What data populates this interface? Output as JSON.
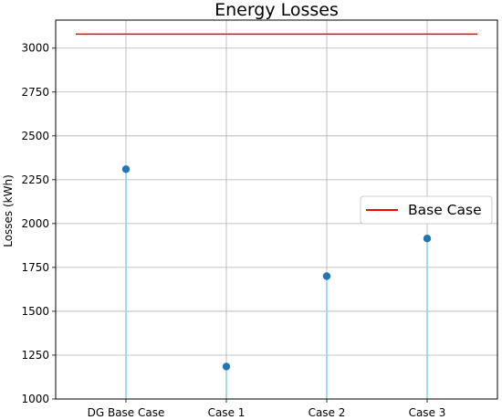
{
  "chart_data": {
    "type": "stem",
    "title": "Energy Losses",
    "xlabel": "",
    "ylabel": "Losses (kWh)",
    "categories": [
      "DG Base Case",
      "Case 1",
      "Case 2",
      "Case 3"
    ],
    "values": [
      2310,
      1185,
      1700,
      1915
    ],
    "ylim": [
      1000,
      3160
    ],
    "yticks": [
      1000,
      1250,
      1500,
      1750,
      2000,
      2250,
      2500,
      2750,
      3000
    ],
    "grid": true,
    "reference_line": {
      "name": "Base Case",
      "value": 3080,
      "color": "#ff0000"
    },
    "legend": {
      "position": "right",
      "entries": [
        "Base Case"
      ]
    },
    "colors": {
      "marker": "#1f77b4",
      "stem": "#87ceeb",
      "grid": "#b0b0b0"
    }
  }
}
